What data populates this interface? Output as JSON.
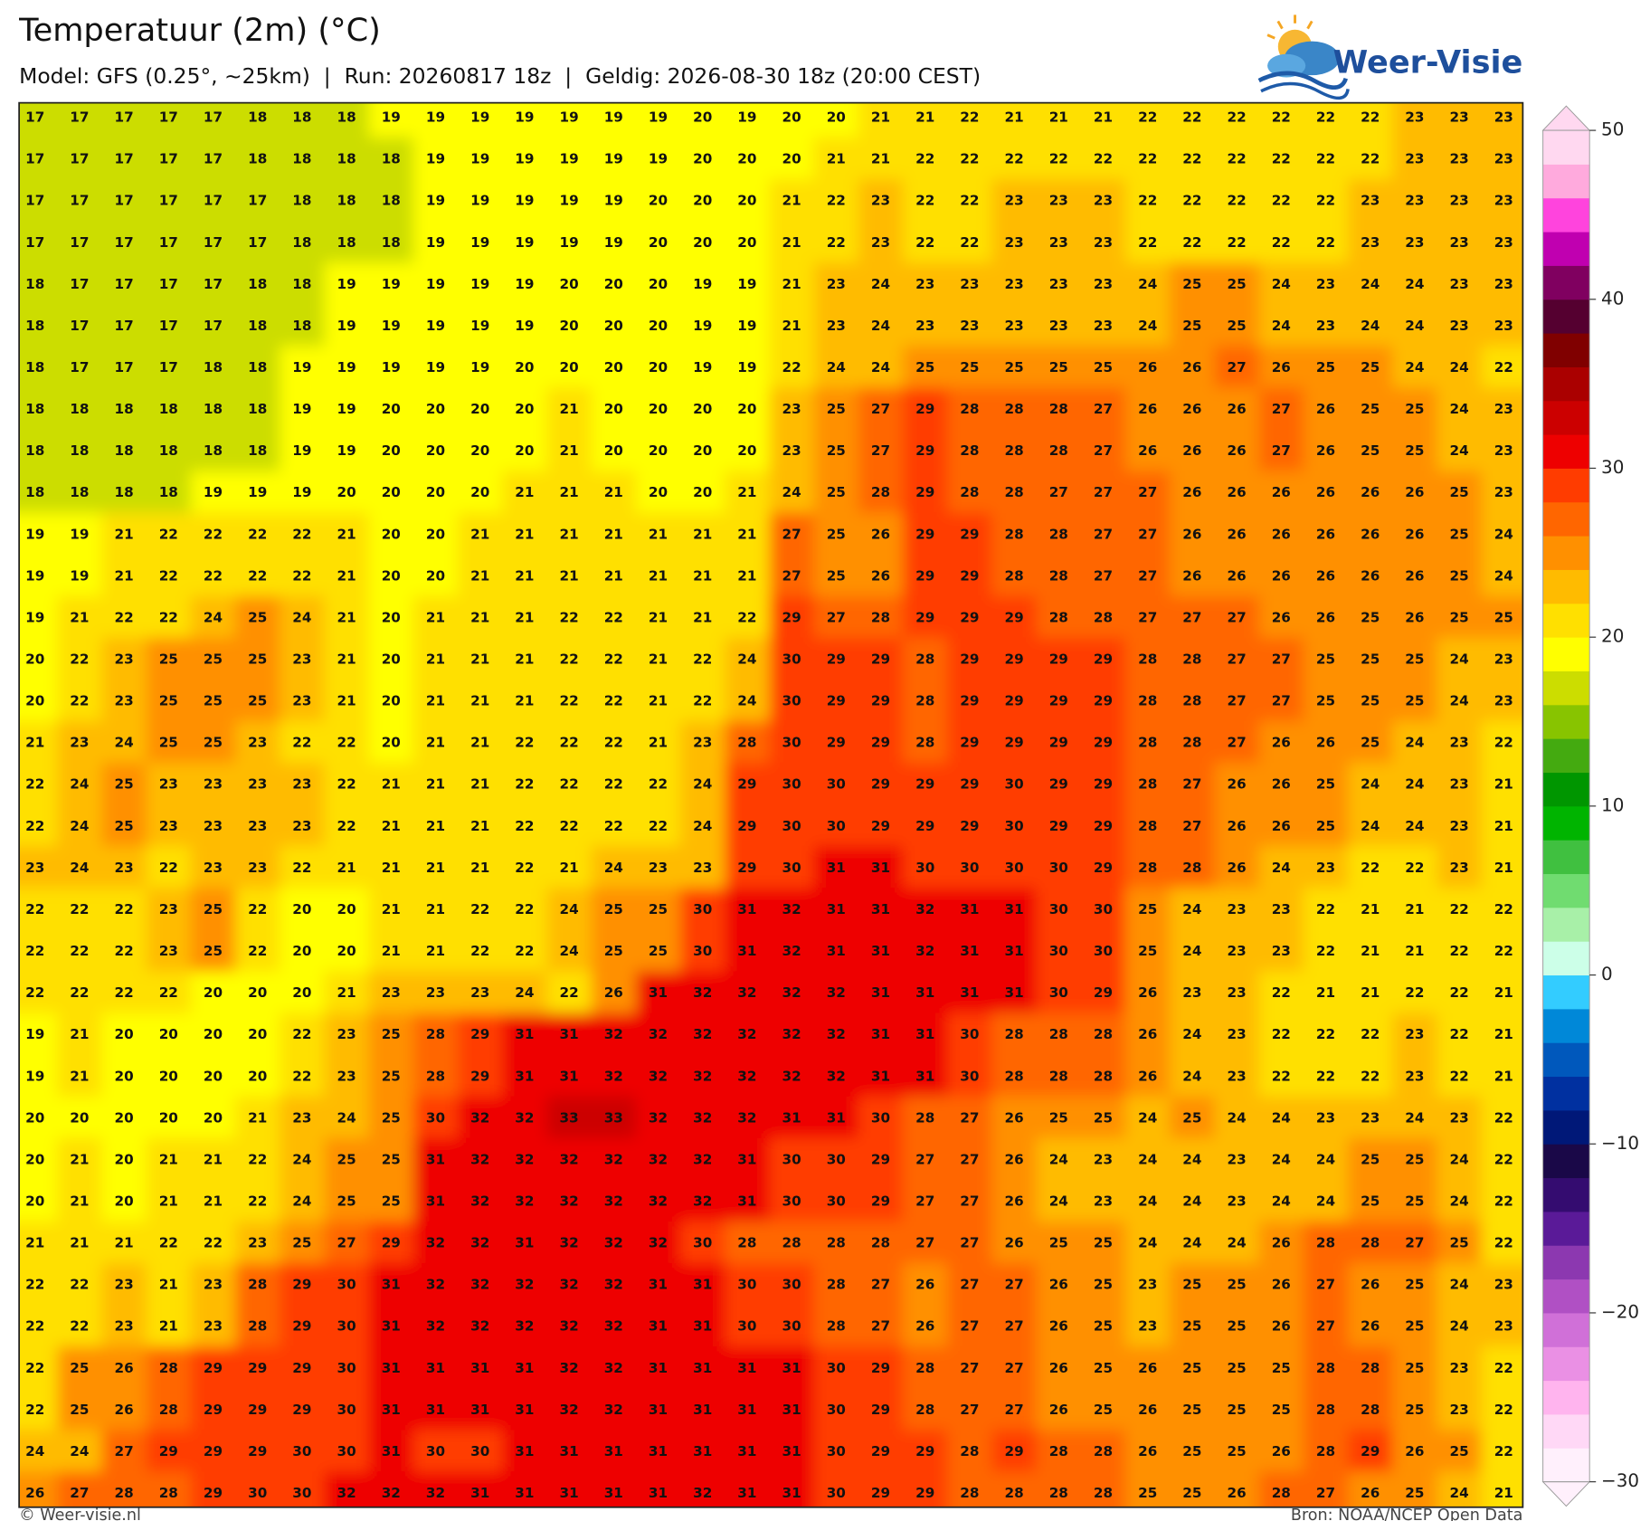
{
  "chart_data": {
    "type": "heatmap",
    "title": "Temperatuur (2m) (°C)",
    "subtitle": "Model: GFS (0.25°, ~25km)  |  Run: 20260817 18z  |  Geldig: 2026-08-30 18z (20:00 CEST)",
    "brand": "Weer-Visie",
    "credit": "© Weer-visie.nl",
    "source": "Bron: NOAA/NCEP Open Data",
    "values": [
      [
        17,
        17,
        17,
        17,
        17,
        18,
        18,
        18,
        19,
        19,
        19,
        19,
        19,
        19,
        19,
        20,
        19,
        20,
        20,
        21,
        21,
        22,
        21,
        21,
        21,
        22,
        22,
        22,
        22,
        22,
        22,
        23,
        23,
        23
      ],
      [
        17,
        17,
        17,
        17,
        17,
        18,
        18,
        18,
        18,
        19,
        19,
        19,
        19,
        19,
        19,
        20,
        20,
        20,
        21,
        21,
        22,
        22,
        22,
        22,
        22,
        22,
        22,
        22,
        22,
        22,
        22,
        23,
        23,
        23
      ],
      [
        17,
        17,
        17,
        17,
        17,
        17,
        18,
        18,
        18,
        19,
        19,
        19,
        19,
        19,
        20,
        20,
        20,
        21,
        22,
        23,
        22,
        22,
        23,
        23,
        23,
        22,
        22,
        22,
        22,
        22,
        23,
        23,
        23,
        23
      ],
      [
        17,
        17,
        17,
        17,
        17,
        17,
        18,
        18,
        18,
        19,
        19,
        19,
        19,
        19,
        20,
        20,
        20,
        21,
        22,
        23,
        22,
        22,
        23,
        23,
        23,
        22,
        22,
        22,
        22,
        22,
        23,
        23,
        23,
        23
      ],
      [
        18,
        17,
        17,
        17,
        17,
        18,
        18,
        19,
        19,
        19,
        19,
        19,
        20,
        20,
        20,
        19,
        19,
        21,
        23,
        24,
        23,
        23,
        23,
        23,
        23,
        24,
        25,
        25,
        24,
        23,
        24,
        24,
        23,
        23
      ],
      [
        18,
        17,
        17,
        17,
        17,
        18,
        18,
        19,
        19,
        19,
        19,
        19,
        20,
        20,
        20,
        19,
        19,
        21,
        23,
        24,
        23,
        23,
        23,
        23,
        23,
        24,
        25,
        25,
        24,
        23,
        24,
        24,
        23,
        23
      ],
      [
        18,
        17,
        17,
        17,
        18,
        18,
        19,
        19,
        19,
        19,
        19,
        20,
        20,
        20,
        20,
        19,
        19,
        22,
        24,
        24,
        25,
        25,
        25,
        25,
        25,
        26,
        26,
        27,
        26,
        25,
        25,
        24,
        24,
        22
      ],
      [
        18,
        18,
        18,
        18,
        18,
        18,
        19,
        19,
        20,
        20,
        20,
        20,
        21,
        20,
        20,
        20,
        20,
        23,
        25,
        27,
        29,
        28,
        28,
        28,
        27,
        26,
        26,
        26,
        27,
        26,
        25,
        25,
        24,
        23
      ],
      [
        18,
        18,
        18,
        18,
        18,
        18,
        19,
        19,
        20,
        20,
        20,
        20,
        21,
        20,
        20,
        20,
        20,
        23,
        25,
        27,
        29,
        28,
        28,
        28,
        27,
        26,
        26,
        26,
        27,
        26,
        25,
        25,
        24,
        23
      ],
      [
        18,
        18,
        18,
        18,
        19,
        19,
        19,
        20,
        20,
        20,
        20,
        21,
        21,
        21,
        20,
        20,
        21,
        24,
        25,
        28,
        29,
        28,
        28,
        27,
        27,
        27,
        26,
        26,
        26,
        26,
        26,
        26,
        25,
        23
      ],
      [
        19,
        19,
        21,
        22,
        22,
        22,
        22,
        21,
        20,
        20,
        21,
        21,
        21,
        21,
        21,
        21,
        21,
        27,
        25,
        26,
        29,
        29,
        28,
        28,
        27,
        27,
        26,
        26,
        26,
        26,
        26,
        26,
        25,
        24
      ],
      [
        19,
        19,
        21,
        22,
        22,
        22,
        22,
        21,
        20,
        20,
        21,
        21,
        21,
        21,
        21,
        21,
        21,
        27,
        25,
        26,
        29,
        29,
        28,
        28,
        27,
        27,
        26,
        26,
        26,
        26,
        26,
        26,
        25,
        24
      ],
      [
        19,
        21,
        22,
        22,
        24,
        25,
        24,
        21,
        20,
        21,
        21,
        21,
        22,
        22,
        21,
        21,
        22,
        29,
        27,
        28,
        29,
        29,
        29,
        28,
        28,
        27,
        27,
        27,
        26,
        26,
        25,
        26,
        25,
        25
      ],
      [
        20,
        22,
        23,
        25,
        25,
        25,
        23,
        21,
        20,
        21,
        21,
        21,
        22,
        22,
        21,
        22,
        24,
        30,
        29,
        29,
        28,
        29,
        29,
        29,
        29,
        28,
        28,
        27,
        27,
        25,
        25,
        25,
        24,
        23
      ],
      [
        20,
        22,
        23,
        25,
        25,
        25,
        23,
        21,
        20,
        21,
        21,
        21,
        22,
        22,
        21,
        22,
        24,
        30,
        29,
        29,
        28,
        29,
        29,
        29,
        29,
        28,
        28,
        27,
        27,
        25,
        25,
        25,
        24,
        23
      ],
      [
        21,
        23,
        24,
        25,
        25,
        23,
        22,
        22,
        20,
        21,
        21,
        22,
        22,
        22,
        21,
        23,
        28,
        30,
        29,
        29,
        28,
        29,
        29,
        29,
        29,
        28,
        28,
        27,
        26,
        26,
        25,
        24,
        23,
        22
      ],
      [
        22,
        24,
        25,
        23,
        23,
        23,
        23,
        22,
        21,
        21,
        21,
        22,
        22,
        22,
        22,
        24,
        29,
        30,
        30,
        29,
        29,
        29,
        30,
        29,
        29,
        28,
        27,
        26,
        26,
        25,
        24,
        24,
        23,
        21
      ],
      [
        22,
        24,
        25,
        23,
        23,
        23,
        23,
        22,
        21,
        21,
        21,
        22,
        22,
        22,
        22,
        24,
        29,
        30,
        30,
        29,
        29,
        29,
        30,
        29,
        29,
        28,
        27,
        26,
        26,
        25,
        24,
        24,
        23,
        21
      ],
      [
        23,
        24,
        23,
        22,
        23,
        23,
        22,
        21,
        21,
        21,
        21,
        22,
        21,
        24,
        23,
        23,
        29,
        30,
        31,
        31,
        30,
        30,
        30,
        30,
        29,
        28,
        28,
        26,
        24,
        23,
        22,
        22,
        23,
        21
      ],
      [
        22,
        22,
        22,
        23,
        25,
        22,
        20,
        20,
        21,
        21,
        22,
        22,
        24,
        25,
        25,
        30,
        31,
        32,
        31,
        31,
        32,
        31,
        31,
        30,
        30,
        25,
        24,
        23,
        23,
        22,
        21,
        21,
        22,
        22
      ],
      [
        22,
        22,
        22,
        23,
        25,
        22,
        20,
        20,
        21,
        21,
        22,
        22,
        24,
        25,
        25,
        30,
        31,
        32,
        31,
        31,
        32,
        31,
        31,
        30,
        30,
        25,
        24,
        23,
        23,
        22,
        21,
        21,
        22,
        22
      ],
      [
        22,
        22,
        22,
        22,
        20,
        20,
        20,
        21,
        23,
        23,
        23,
        24,
        22,
        26,
        31,
        32,
        32,
        32,
        32,
        31,
        31,
        31,
        31,
        30,
        29,
        26,
        23,
        23,
        22,
        21,
        21,
        22,
        22,
        21
      ],
      [
        19,
        21,
        20,
        20,
        20,
        20,
        22,
        23,
        25,
        28,
        29,
        31,
        31,
        32,
        32,
        32,
        32,
        32,
        32,
        31,
        31,
        30,
        28,
        28,
        28,
        26,
        24,
        23,
        22,
        22,
        22,
        23,
        22,
        21
      ],
      [
        19,
        21,
        20,
        20,
        20,
        20,
        22,
        23,
        25,
        28,
        29,
        31,
        31,
        32,
        32,
        32,
        32,
        32,
        32,
        31,
        31,
        30,
        28,
        28,
        28,
        26,
        24,
        23,
        22,
        22,
        22,
        23,
        22,
        21
      ],
      [
        20,
        20,
        20,
        20,
        20,
        21,
        23,
        24,
        25,
        30,
        32,
        32,
        33,
        33,
        32,
        32,
        32,
        31,
        31,
        30,
        28,
        27,
        26,
        25,
        25,
        24,
        25,
        24,
        24,
        23,
        23,
        24,
        23,
        22
      ],
      [
        20,
        21,
        20,
        21,
        21,
        22,
        24,
        25,
        25,
        31,
        32,
        32,
        32,
        32,
        32,
        32,
        31,
        30,
        30,
        29,
        27,
        27,
        26,
        24,
        23,
        24,
        24,
        23,
        24,
        24,
        25,
        25,
        24,
        22
      ],
      [
        20,
        21,
        20,
        21,
        21,
        22,
        24,
        25,
        25,
        31,
        32,
        32,
        32,
        32,
        32,
        32,
        31,
        30,
        30,
        29,
        27,
        27,
        26,
        24,
        23,
        24,
        24,
        23,
        24,
        24,
        25,
        25,
        24,
        22
      ],
      [
        21,
        21,
        21,
        22,
        22,
        23,
        25,
        27,
        29,
        32,
        32,
        31,
        32,
        32,
        32,
        30,
        28,
        28,
        28,
        28,
        27,
        27,
        26,
        25,
        25,
        24,
        24,
        24,
        26,
        28,
        28,
        27,
        25,
        22
      ],
      [
        22,
        22,
        23,
        21,
        23,
        28,
        29,
        30,
        31,
        32,
        32,
        32,
        32,
        32,
        31,
        31,
        30,
        30,
        28,
        27,
        26,
        27,
        27,
        26,
        25,
        23,
        25,
        25,
        26,
        27,
        26,
        25,
        24,
        23
      ],
      [
        22,
        22,
        23,
        21,
        23,
        28,
        29,
        30,
        31,
        32,
        32,
        32,
        32,
        32,
        31,
        31,
        30,
        30,
        28,
        27,
        26,
        27,
        27,
        26,
        25,
        23,
        25,
        25,
        26,
        27,
        26,
        25,
        24,
        23
      ],
      [
        22,
        25,
        26,
        28,
        29,
        29,
        29,
        30,
        31,
        31,
        31,
        31,
        32,
        32,
        31,
        31,
        31,
        31,
        30,
        29,
        28,
        27,
        27,
        26,
        25,
        26,
        25,
        25,
        25,
        28,
        28,
        25,
        23,
        22
      ],
      [
        22,
        25,
        26,
        28,
        29,
        29,
        29,
        30,
        31,
        31,
        31,
        31,
        32,
        32,
        31,
        31,
        31,
        31,
        30,
        29,
        28,
        27,
        27,
        26,
        25,
        26,
        25,
        25,
        25,
        28,
        28,
        25,
        23,
        22
      ],
      [
        24,
        24,
        27,
        29,
        29,
        29,
        30,
        30,
        31,
        30,
        30,
        31,
        31,
        31,
        31,
        31,
        31,
        31,
        30,
        29,
        29,
        28,
        29,
        28,
        28,
        26,
        25,
        25,
        26,
        28,
        29,
        26,
        25,
        22
      ],
      [
        26,
        27,
        28,
        28,
        29,
        30,
        30,
        32,
        32,
        32,
        31,
        31,
        31,
        31,
        31,
        32,
        31,
        31,
        30,
        29,
        29,
        28,
        28,
        28,
        28,
        25,
        25,
        26,
        28,
        27,
        26,
        25,
        24,
        21
      ]
    ],
    "colorbar": {
      "lim": [
        -30,
        50
      ],
      "ticks": [
        50,
        40,
        30,
        20,
        10,
        0,
        {
          "value": -10,
          "label": "−10"
        },
        {
          "value": -20,
          "label": "−20"
        },
        {
          "value": -30,
          "label": "−30"
        }
      ],
      "colors": [
        "#fff0fc",
        "#ffd8f6",
        "#ffb4ee",
        "#ea90e4",
        "#d070d8",
        "#b050c4",
        "#8c38b0",
        "#5a1a98",
        "#340c70",
        "#1a0848",
        "#001878",
        "#0030a0",
        "#0058bc",
        "#0088d8",
        "#33ccff",
        "#ccffe8",
        "#a8f0a8",
        "#70dc70",
        "#40c040",
        "#00b400",
        "#009600",
        "#44aa10",
        "#88c400",
        "#ccdd00",
        "#ffff00",
        "#ffe000",
        "#ffbb00",
        "#ff9000",
        "#ff6600",
        "#ff3c00",
        "#ee0000",
        "#cc0000",
        "#aa0000",
        "#800000",
        "#550030",
        "#800060",
        "#c000b0",
        "#ff44dd",
        "#ffaadd",
        "#ffd8f0"
      ]
    }
  }
}
